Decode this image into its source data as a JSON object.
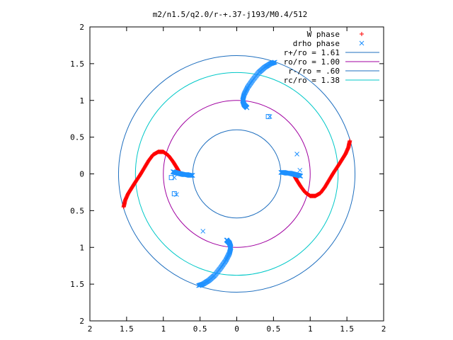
{
  "chart_data": {
    "type": "scatter",
    "title": "m2/n1.5/q2.0/r-+.37-j193/M0.4/512",
    "xlim": [
      -2,
      2
    ],
    "ylim": [
      -2,
      2
    ],
    "x_tick_values": [
      -2,
      -1.5,
      -1,
      -0.5,
      0,
      0.5,
      1,
      1.5,
      2
    ],
    "x_tick_labels": [
      "2",
      "1.5",
      "1",
      "0.5",
      "0",
      "0.5",
      "1",
      "1.5",
      "2"
    ],
    "y_tick_values": [
      2,
      1.5,
      1,
      0.5,
      0,
      -0.5,
      -1,
      -1.5,
      -2
    ],
    "y_tick_labels": [
      "2",
      "1.5",
      "1",
      "0.5",
      "0",
      "0.5",
      "1",
      "1.5",
      "2"
    ],
    "grid": false,
    "legend_position": "top-right",
    "series": [
      {
        "name": "W phase",
        "marker": "plus",
        "color": "#ff0000",
        "arms": [
          {
            "rot": 0,
            "x": [
              1.54,
              1.52,
              1.48,
              1.43,
              1.38,
              1.32,
              1.26,
              1.2,
              1.14,
              1.07,
              1.0,
              0.93,
              0.87,
              0.82,
              0.78
            ],
            "y": [
              0.45,
              0.36,
              0.27,
              0.19,
              0.11,
              0.02,
              -0.08,
              -0.18,
              -0.26,
              -0.3,
              -0.3,
              -0.25,
              -0.17,
              -0.09,
              -0.02
            ]
          },
          {
            "rot": 180,
            "x": [
              1.54,
              1.52,
              1.48,
              1.43,
              1.38,
              1.32,
              1.26,
              1.2,
              1.14,
              1.07,
              1.0,
              0.93,
              0.87,
              0.82,
              0.78
            ],
            "y": [
              0.45,
              0.36,
              0.27,
              0.19,
              0.11,
              0.02,
              -0.08,
              -0.18,
              -0.26,
              -0.3,
              -0.3,
              -0.25,
              -0.17,
              -0.09,
              -0.02
            ]
          }
        ]
      },
      {
        "name": "drho phase",
        "marker": "cross",
        "color": "#1e90ff",
        "arms": [
          {
            "rot": 0,
            "x": [
              0.6,
              0.64,
              0.68,
              0.72,
              0.76,
              0.8,
              0.84,
              0.87
            ],
            "y": [
              0.02,
              0.02,
              0.01,
              0.01,
              0.0,
              -0.01,
              -0.02,
              -0.03
            ]
          },
          {
            "rot": 180,
            "x": [
              0.6,
              0.64,
              0.68,
              0.72,
              0.76,
              0.8,
              0.84,
              0.87
            ],
            "y": [
              0.02,
              0.02,
              0.01,
              0.01,
              0.0,
              -0.01,
              -0.02,
              -0.03
            ]
          },
          {
            "rot": 0,
            "x": [
              0.14,
              0.1,
              0.08,
              0.1,
              0.15,
              0.22,
              0.3,
              0.38,
              0.46,
              0.52
            ],
            "y": [
              0.9,
              0.94,
              1.0,
              1.08,
              1.18,
              1.28,
              1.38,
              1.45,
              1.5,
              1.52
            ]
          },
          {
            "rot": 180,
            "x": [
              0.14,
              0.1,
              0.08,
              0.1,
              0.15,
              0.22,
              0.3,
              0.38,
              0.46,
              0.52
            ],
            "y": [
              0.9,
              0.94,
              1.0,
              1.08,
              1.18,
              1.28,
              1.38,
              1.45,
              1.5,
              1.52
            ]
          }
        ],
        "extra_x": [
          0.45,
          -0.85,
          -0.82,
          0.82,
          0.86,
          -0.46,
          -0.13
        ],
        "extra_y": [
          0.78,
          -0.05,
          -0.28,
          0.27,
          0.05,
          -0.78,
          -0.9
        ]
      },
      {
        "name": "r+/ro = 1.61",
        "type": "circle",
        "radius": 1.61,
        "color": "#1f6fbf"
      },
      {
        "name": "ro/ro = 1.00",
        "type": "circle",
        "radius": 1.0,
        "color": "#a000a0"
      },
      {
        "name": "r-/ro = .60",
        "type": "circle",
        "radius": 0.6,
        "color": "#1f6fbf"
      },
      {
        "name": "rc/ro = 1.38",
        "type": "circle",
        "radius": 1.38,
        "color": "#00c8c8"
      }
    ],
    "square_markers_x": [
      0.43,
      -0.89,
      -0.85
    ],
    "square_markers_y": [
      0.78,
      -0.05,
      -0.27
    ]
  }
}
